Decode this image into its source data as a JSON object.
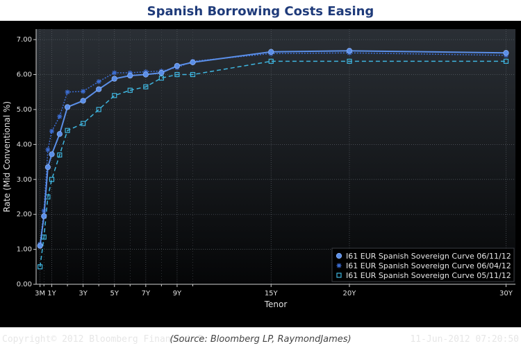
{
  "title": "Spanish Borrowing Costs Easing",
  "footer": {
    "copyright": "Copyright© 2012 Bloomberg Finance L.P.",
    "timestamp": "11-Jun-2012 07:20:50"
  },
  "source": "(Source: Bloomberg LP, RaymondJames)",
  "colors": {
    "background": "#000000",
    "series1": "#5b8fe8",
    "series2": "#3d6fd6",
    "series3": "#3fb6e0",
    "title": "#1f3b7a"
  },
  "chart_data": {
    "type": "line",
    "xlabel": "Tenor",
    "ylabel": "Rate (Mid Conventional %)",
    "ylim": [
      0,
      7.3
    ],
    "xlim": [
      0,
      30.6
    ],
    "yticks": [
      0,
      1,
      2,
      3,
      4,
      5,
      6,
      7
    ],
    "yticklabels": [
      "0.00",
      "1.00",
      "2.00",
      "3.00",
      "4.00",
      "5.00",
      "6.00",
      "7.00"
    ],
    "xticks": [
      0.25,
      1,
      3,
      5,
      7,
      9,
      15,
      20,
      30
    ],
    "xticklabels": [
      "3M",
      "1Y",
      "3Y",
      "5Y",
      "7Y",
      "9Y",
      "15Y",
      "20Y",
      "30Y"
    ],
    "grid": true,
    "legend_position": "bottom-right",
    "series": [
      {
        "name": "I61 EUR Spanish Sovereign Curve 06/11/12",
        "marker": "circle",
        "style": "solid",
        "x": [
          0.25,
          0.5,
          0.75,
          1,
          1.5,
          2,
          3,
          4,
          5,
          6,
          7,
          8,
          9,
          10,
          15,
          20,
          30
        ],
        "y": [
          1.1,
          1.95,
          3.35,
          3.72,
          4.3,
          5.07,
          5.25,
          5.58,
          5.88,
          5.97,
          6.0,
          6.05,
          6.25,
          6.35,
          6.65,
          6.68,
          6.62
        ]
      },
      {
        "name": "I61 EUR Spanish Sovereign Curve 06/04/12",
        "marker": "star",
        "style": "dotted",
        "x": [
          0.25,
          0.5,
          0.75,
          1,
          1.5,
          2,
          3,
          4,
          5,
          6,
          7,
          8,
          9,
          10,
          15,
          20,
          30
        ],
        "y": [
          1.15,
          2.1,
          3.85,
          4.38,
          4.8,
          5.5,
          5.52,
          5.8,
          6.05,
          6.05,
          6.08,
          6.1,
          6.2,
          6.38,
          6.6,
          6.62,
          6.55
        ]
      },
      {
        "name": "I61 EUR Spanish Sovereign Curve 05/11/12",
        "marker": "square",
        "style": "dashed",
        "x": [
          0.25,
          0.5,
          0.75,
          1,
          1.5,
          2,
          3,
          4,
          5,
          6,
          7,
          8,
          9,
          10,
          15,
          20,
          30
        ],
        "y": [
          0.5,
          1.35,
          2.5,
          3.0,
          3.7,
          4.4,
          4.6,
          5.0,
          5.4,
          5.55,
          5.65,
          5.9,
          6.0,
          6.0,
          6.38,
          6.38,
          6.38
        ]
      }
    ]
  }
}
